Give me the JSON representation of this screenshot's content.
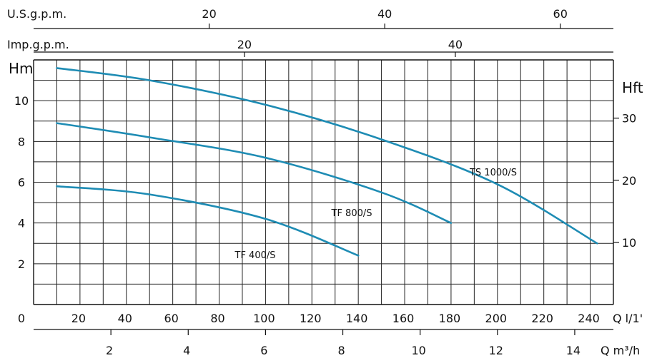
{
  "chart_data": {
    "type": "line",
    "title": "",
    "x_axis": {
      "label": "Q l/1'",
      "ticks": [
        0,
        20,
        40,
        60,
        80,
        100,
        120,
        140,
        160,
        180,
        200,
        220,
        240
      ],
      "range": [
        0,
        250
      ]
    },
    "x_axis_m3h": {
      "label": "Q m³/h",
      "ticks": [
        2,
        4,
        6,
        8,
        10,
        12,
        14
      ]
    },
    "x_axis_usgpm": {
      "label": "U.S.g.p.m.",
      "ticks": [
        20,
        40,
        60
      ]
    },
    "x_axis_impgpm": {
      "label": "Imp.g.p.m.",
      "ticks": [
        20,
        40
      ]
    },
    "y_axis": {
      "label": "Hm",
      "ticks": [
        2,
        4,
        6,
        8,
        10
      ],
      "range": [
        0,
        12
      ]
    },
    "y_axis_right": {
      "label": "Hft",
      "ticks": [
        10,
        20,
        30
      ]
    },
    "grid": true,
    "series": [
      {
        "name": "TS 1000/S",
        "x": [
          10,
          50,
          100,
          150,
          200,
          243
        ],
        "y": [
          11.6,
          11.0,
          9.8,
          8.1,
          5.9,
          3.0
        ]
      },
      {
        "name": "TF 800/S",
        "x": [
          10,
          50,
          100,
          150,
          180
        ],
        "y": [
          8.9,
          8.2,
          7.2,
          5.5,
          4.0
        ]
      },
      {
        "name": "TF 400/S",
        "x": [
          10,
          50,
          100,
          140
        ],
        "y": [
          5.8,
          5.4,
          4.2,
          2.4
        ]
      }
    ],
    "line_color": "#1e8cb4",
    "grid_color": "#222222"
  }
}
